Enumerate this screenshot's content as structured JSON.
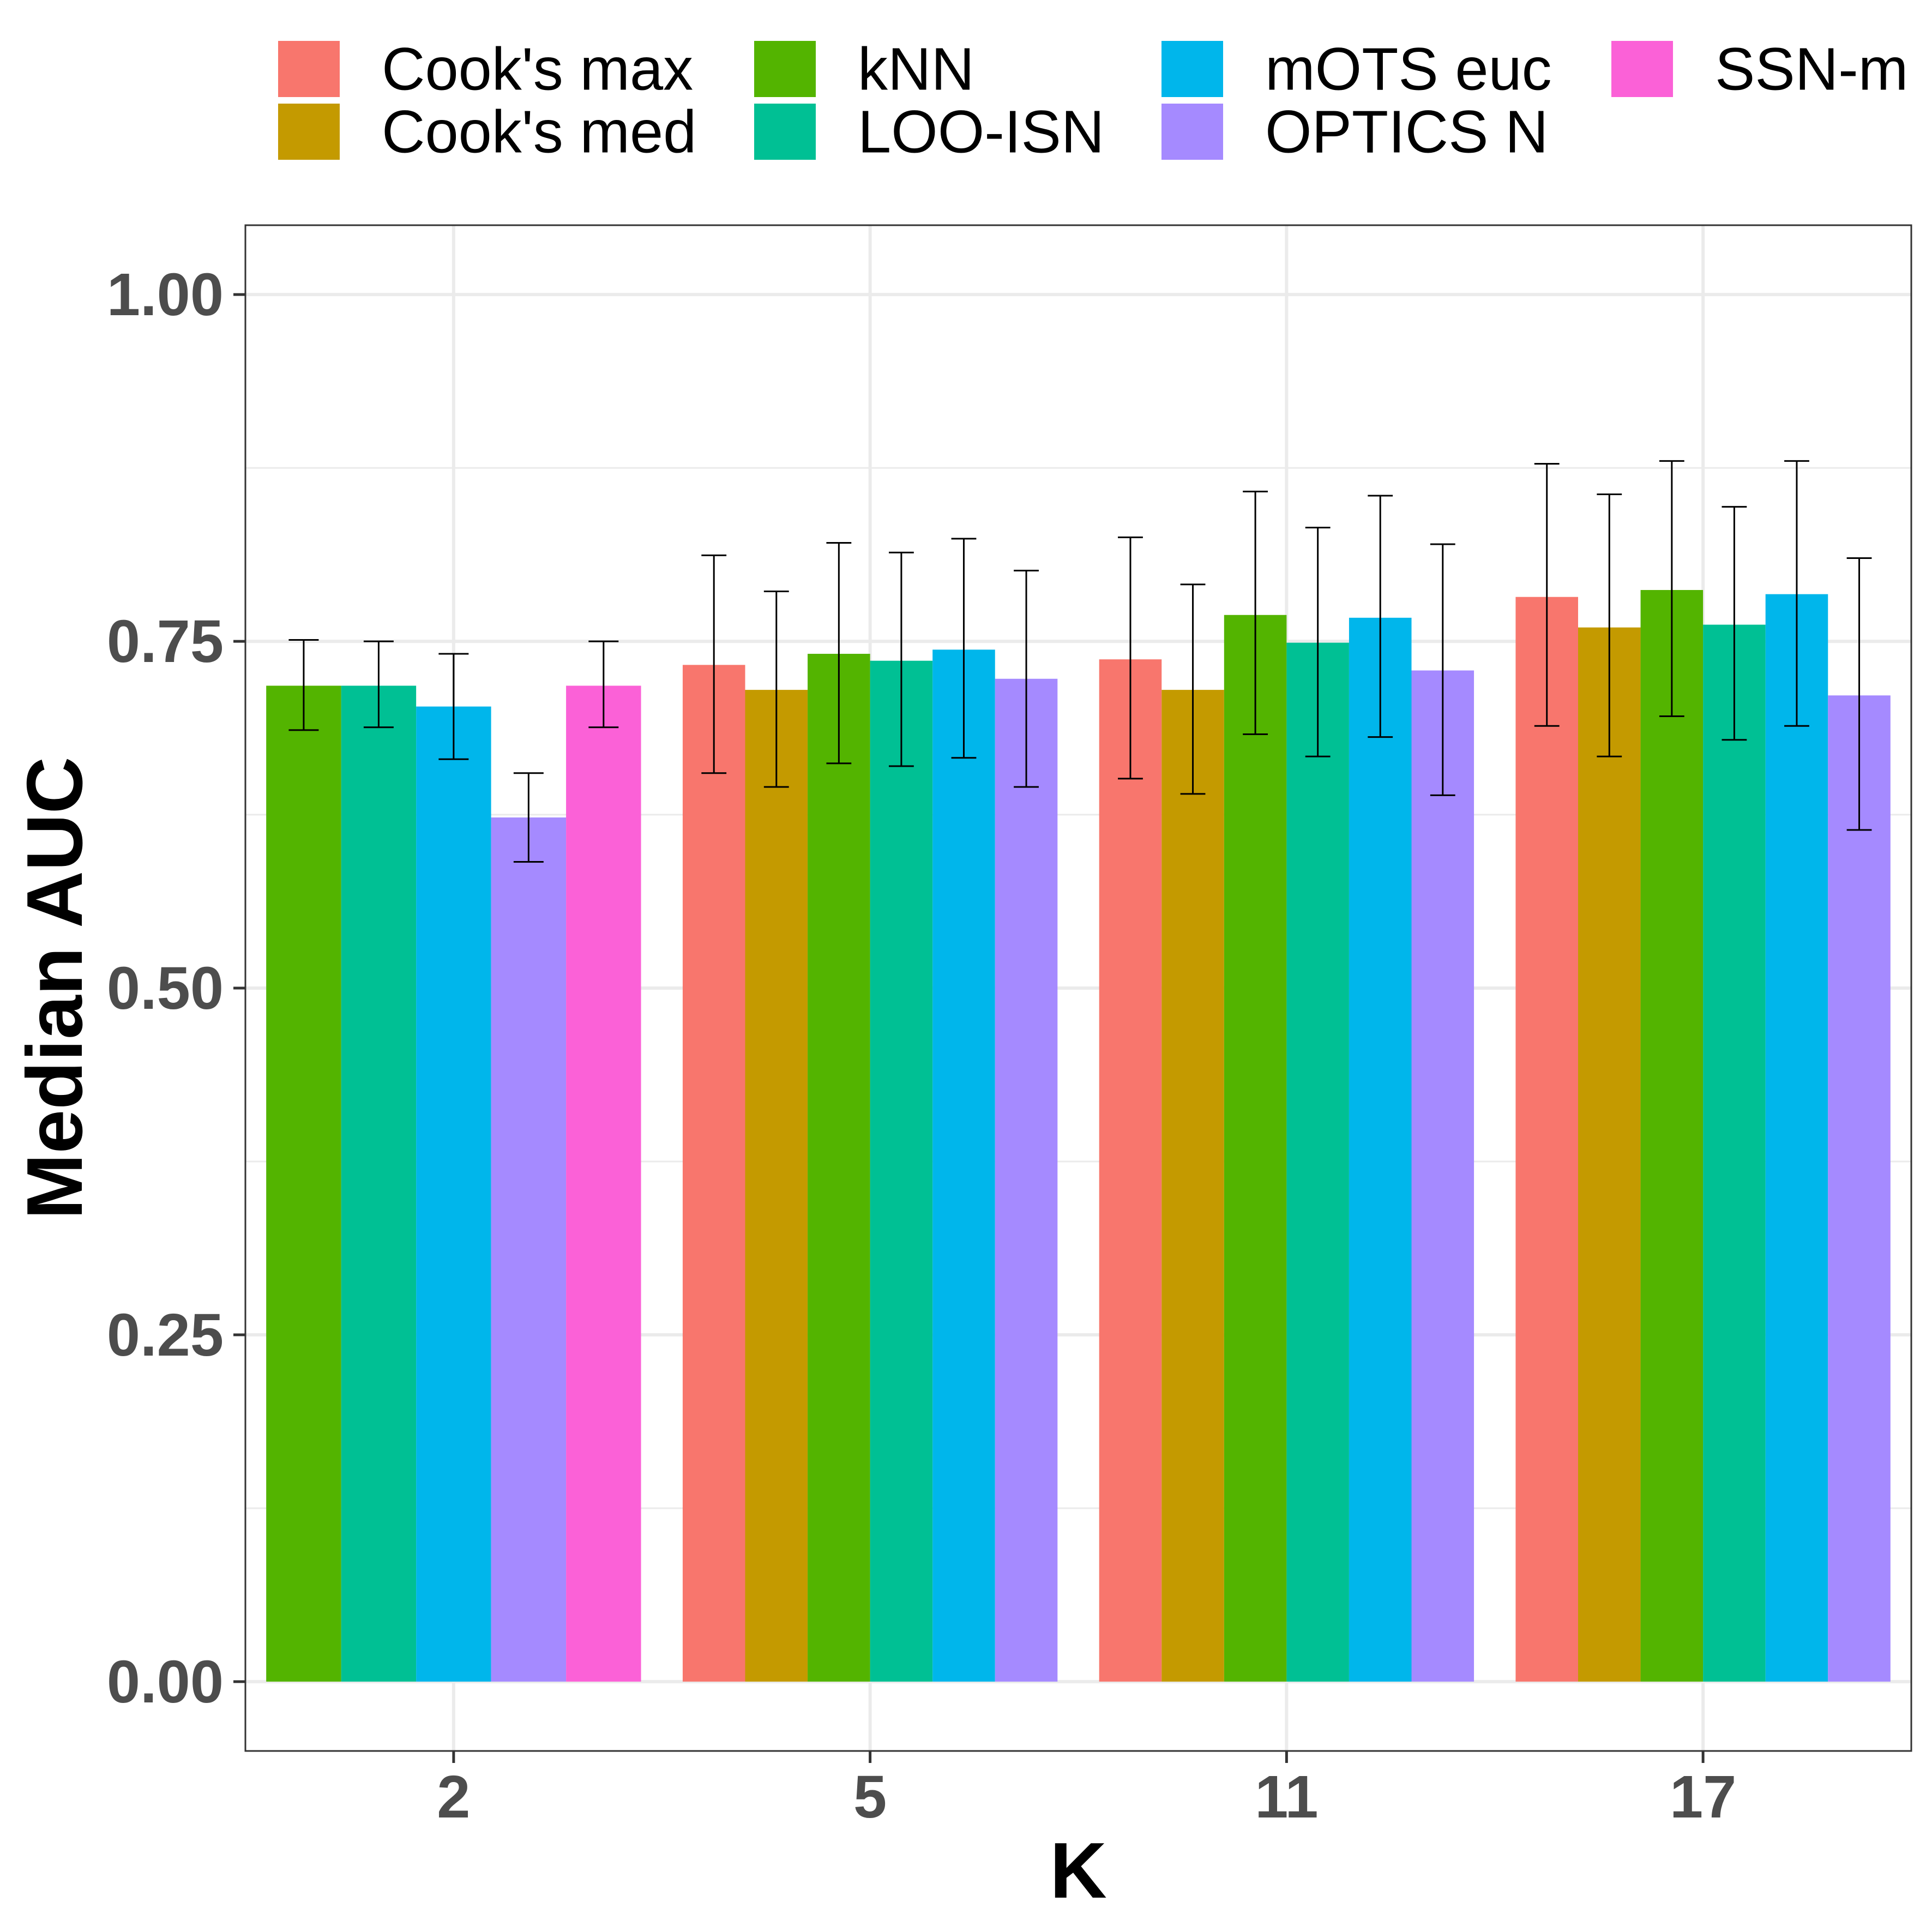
{
  "chart_data": {
    "type": "bar",
    "xlabel": "K",
    "ylabel": "Median AUC",
    "ylim": [
      -0.05,
      1.05
    ],
    "yticks": [
      "0.00",
      "0.25",
      "0.50",
      "0.75",
      "1.00"
    ],
    "categories": [
      "2",
      "5",
      "11",
      "17"
    ],
    "grid": true,
    "legend_position": "top",
    "series": [
      {
        "name": "Cook's max",
        "color": "#F8766D",
        "values": [
          null,
          0.733,
          0.737,
          0.782
        ],
        "err_low": [
          null,
          0.655,
          0.651,
          0.689
        ],
        "err_high": [
          null,
          0.812,
          0.825,
          0.878
        ]
      },
      {
        "name": "Cook's med",
        "color": "#C49A00",
        "values": [
          null,
          0.715,
          0.715,
          0.76
        ],
        "err_low": [
          null,
          0.645,
          0.64,
          0.667
        ],
        "err_high": [
          null,
          0.786,
          0.791,
          0.856
        ]
      },
      {
        "name": "kNN",
        "color": "#53B400",
        "values": [
          0.718,
          0.741,
          0.769,
          0.787
        ],
        "err_low": [
          0.686,
          0.662,
          0.683,
          0.696
        ],
        "err_high": [
          0.751,
          0.821,
          0.858,
          0.88
        ]
      },
      {
        "name": "LOO-ISN",
        "color": "#00C094",
        "values": [
          0.718,
          0.736,
          0.749,
          0.762
        ],
        "err_low": [
          0.688,
          0.66,
          0.667,
          0.679
        ],
        "err_high": [
          0.75,
          0.814,
          0.832,
          0.847
        ]
      },
      {
        "name": "mOTS euc",
        "color": "#00B6EB",
        "values": [
          0.703,
          0.744,
          0.767,
          0.784
        ],
        "err_low": [
          0.665,
          0.666,
          0.681,
          0.689
        ],
        "err_high": [
          0.741,
          0.824,
          0.855,
          0.88
        ]
      },
      {
        "name": "OPTICS N",
        "color": "#A58AFF",
        "values": [
          0.623,
          0.723,
          0.729,
          0.711
        ],
        "err_low": [
          0.591,
          0.645,
          0.639,
          0.614
        ],
        "err_high": [
          0.655,
          0.801,
          0.82,
          0.81
        ]
      },
      {
        "name": "SSN-m",
        "color": "#FB61D7",
        "values": [
          0.718,
          null,
          null,
          null
        ],
        "err_low": [
          0.688,
          null,
          null,
          null
        ],
        "err_high": [
          0.75,
          null,
          null,
          null
        ]
      }
    ]
  }
}
